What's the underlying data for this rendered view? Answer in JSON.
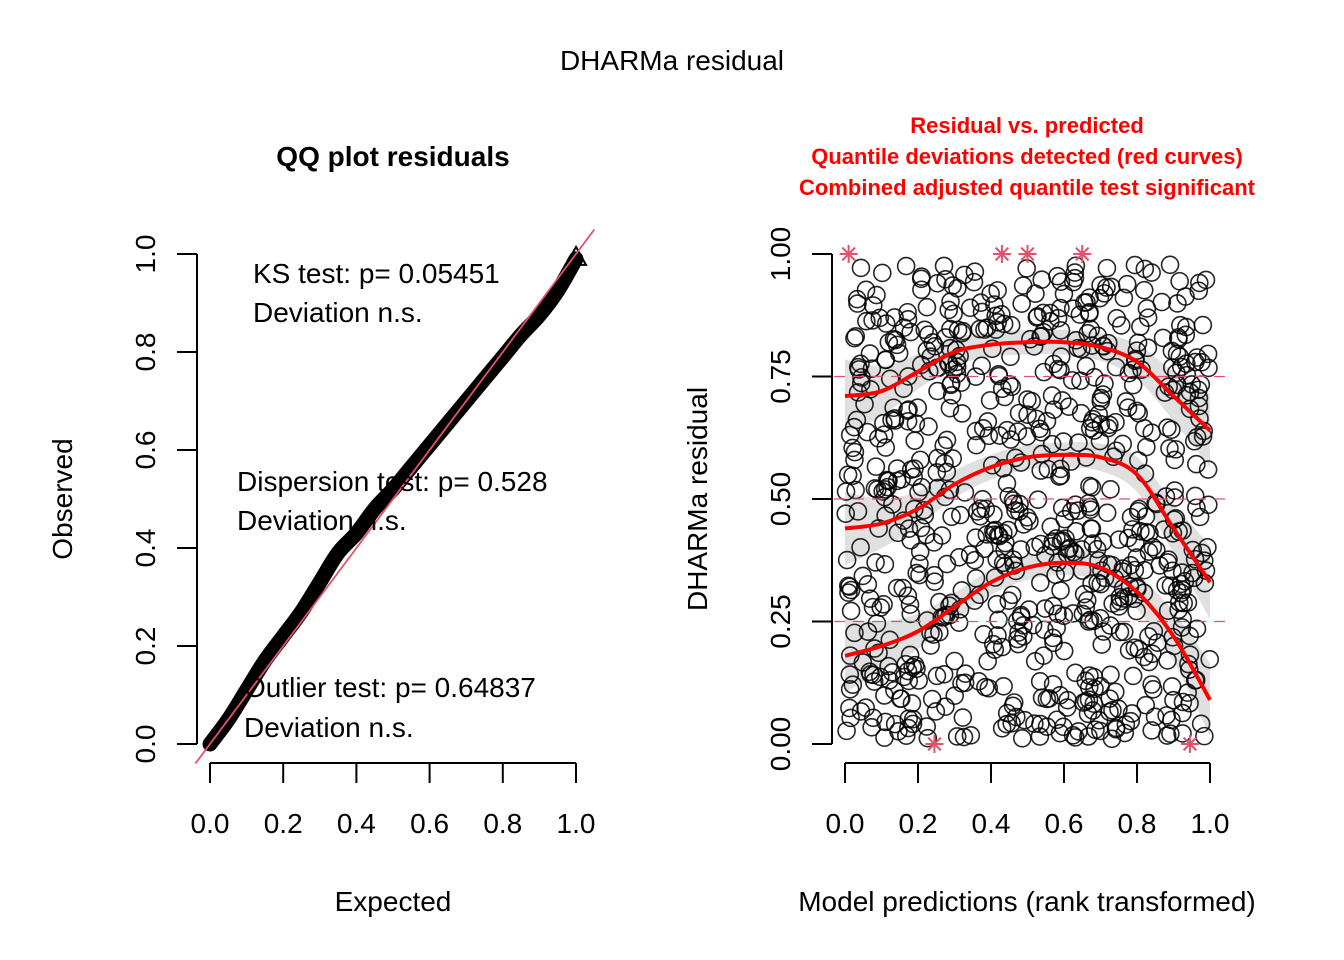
{
  "figure": {
    "title": "DHARMa residual"
  },
  "chart_data": [
    {
      "type": "scatter",
      "title": "QQ plot residuals",
      "xlabel": "Expected",
      "ylabel": "Observed",
      "xlim": [
        0,
        1
      ],
      "ylim": [
        0,
        1
      ],
      "x_ticks": [
        "0.0",
        "0.2",
        "0.4",
        "0.6",
        "0.8",
        "1.0"
      ],
      "y_ticks": [
        "0.0",
        "0.2",
        "0.4",
        "0.6",
        "0.8",
        "1.0"
      ],
      "reference_line": {
        "slope": 1,
        "intercept": 0,
        "color": "#DF536B"
      },
      "qq_curve": {
        "expected": [
          0.0,
          0.05,
          0.1,
          0.15,
          0.2,
          0.25,
          0.3,
          0.35,
          0.4,
          0.45,
          0.5,
          0.55,
          0.6,
          0.65,
          0.7,
          0.75,
          0.8,
          0.85,
          0.9,
          0.95,
          1.0
        ],
        "observed": [
          0.0,
          0.05,
          0.11,
          0.17,
          0.22,
          0.27,
          0.33,
          0.39,
          0.43,
          0.48,
          0.52,
          0.565,
          0.61,
          0.655,
          0.7,
          0.745,
          0.79,
          0.835,
          0.875,
          0.925,
          0.99
        ]
      },
      "annotations": [
        {
          "line1": "KS test: p= 0.05451",
          "line2": "Deviation  n.s."
        },
        {
          "line1": "Dispersion test: p= 0.528",
          "line2": "Deviation  n.s."
        },
        {
          "line1": "Outlier test: p= 0.64837",
          "line2": "Deviation  n.s."
        }
      ]
    },
    {
      "type": "scatter",
      "title_lines": [
        "Residual vs. predicted",
        "Quantile deviations detected (red curves)",
        "Combined adjusted quantile test significant"
      ],
      "title_color": "#FF0000",
      "xlabel": "Model predictions (rank transformed)",
      "ylabel": "DHARMa residual",
      "xlim": [
        0,
        1
      ],
      "ylim": [
        0,
        1
      ],
      "x_ticks": [
        "0.0",
        "0.2",
        "0.4",
        "0.6",
        "0.8",
        "1.0"
      ],
      "y_ticks": [
        "0.00",
        "0.25",
        "0.50",
        "0.75",
        "1.00"
      ],
      "reference_lines": [
        0.25,
        0.5,
        0.75
      ],
      "reference_line_color": "#DF536B",
      "quantile_curves": {
        "x": [
          0.0,
          0.1,
          0.2,
          0.3,
          0.4,
          0.5,
          0.6,
          0.7,
          0.8,
          0.9,
          1.0
        ],
        "series": [
          {
            "name": "q0.75",
            "values": [
              0.71,
              0.72,
              0.76,
              0.8,
              0.815,
              0.82,
              0.82,
              0.81,
              0.78,
              0.71,
              0.64
            ]
          },
          {
            "name": "q0.50",
            "values": [
              0.44,
              0.45,
              0.48,
              0.53,
              0.565,
              0.585,
              0.59,
              0.585,
              0.55,
              0.44,
              0.33
            ]
          },
          {
            "name": "q0.25",
            "values": [
              0.18,
              0.2,
              0.23,
              0.28,
              0.33,
              0.36,
              0.37,
              0.36,
              0.31,
              0.22,
              0.09
            ]
          }
        ],
        "color": "#FF0000",
        "band_color": "#E0E0E0"
      },
      "outliers": [
        {
          "x": 0.01,
          "y": 1.0
        },
        {
          "x": 0.43,
          "y": 1.0
        },
        {
          "x": 0.5,
          "y": 1.0
        },
        {
          "x": 0.65,
          "y": 1.0
        },
        {
          "x": 0.245,
          "y": 0.0
        },
        {
          "x": 0.945,
          "y": 0.0
        }
      ],
      "outlier_color": "#DF536B",
      "points_note": "approx. 800 residual points uniformly spread over [0,1]x[0,1]",
      "n_points": 800
    }
  ]
}
